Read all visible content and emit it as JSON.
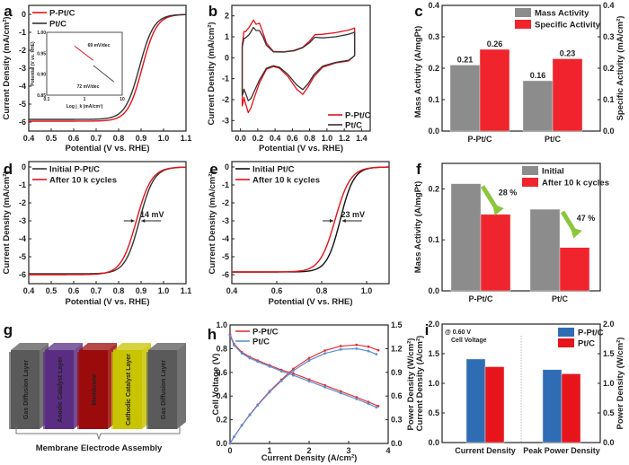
{
  "figure": {
    "panel_labels": [
      "a",
      "b",
      "c",
      "d",
      "e",
      "f",
      "g",
      "h",
      "i"
    ]
  },
  "chart_data": [
    {
      "panel": "a",
      "type": "line",
      "xlabel": "Potential  (V vs. RHE)",
      "ylabel": "Current Density (mA/cm²)",
      "xlim": [
        0.4,
        1.1
      ],
      "ylim": [
        -6.5,
        0.5
      ],
      "xticks": [
        "0.4",
        "0.5",
        "0.6",
        "0.7",
        "0.8",
        "0.9",
        "1.0",
        "1.1"
      ],
      "yticks": [
        "0",
        "-1",
        "-2",
        "-3",
        "-4",
        "-5",
        "-6"
      ],
      "legend": "top-left",
      "series": [
        {
          "name": "P-Pt/C",
          "color": "#e0141c",
          "limiting": -5.95,
          "half_wave": 0.905,
          "width": 0.032
        },
        {
          "name": "Pt/C",
          "color": "#333333",
          "limiting": -5.85,
          "half_wave": 0.893,
          "width": 0.032
        }
      ],
      "inset": {
        "xlabel": "Log j_k (mA/cm²)",
        "ylabel": "Potential (V vs. RHE)",
        "xticks": [
          "0.1",
          "1",
          "10"
        ],
        "yticks": [
          "0.85",
          "0.90",
          "0.95",
          "1.00"
        ],
        "annotations": [
          {
            "text": "69 mV/dec",
            "color": "#e0141c"
          },
          {
            "text": "72 mV/dec",
            "color": "#555555"
          }
        ],
        "series": [
          {
            "name": "P-Pt/C",
            "x": [
              0.55,
              1.7
            ],
            "y": [
              0.967,
              0.933
            ],
            "color": "#e0141c"
          },
          {
            "name": "Pt/C",
            "x": [
              1.7,
              6.0
            ],
            "y": [
              0.921,
              0.882
            ],
            "color": "#555555"
          }
        ]
      }
    },
    {
      "panel": "b",
      "type": "line",
      "xlabel": "Potential  (V vs. RHE)",
      "ylabel": "Current Density (mA/cm²)",
      "xlim": [
        -0.1,
        1.5
      ],
      "ylim": [
        -3.5,
        2.5
      ],
      "xticks": [
        "0.0",
        "0.2",
        "0.4",
        "0.6",
        "0.8",
        "1.0",
        "1.2",
        "1.4"
      ],
      "yticks": [
        "2",
        "1",
        "0",
        "-1",
        "-2",
        "-3"
      ],
      "legend": "bottom-right",
      "series": [
        {
          "name": "P-Pt/C",
          "color": "#e0141c",
          "x": [
            0.02,
            0.04,
            0.06,
            0.1,
            0.15,
            0.18,
            0.22,
            0.26,
            0.3,
            0.38,
            0.5,
            0.62,
            0.72,
            0.8,
            0.86,
            0.95,
            1.1,
            1.25,
            1.32,
            1.32,
            1.25,
            1.1,
            0.95,
            0.85,
            0.78,
            0.72,
            0.65,
            0.55,
            0.45,
            0.38,
            0.3,
            0.22,
            0.16,
            0.12,
            0.09,
            0.06,
            0.04,
            0.03,
            0.02
          ],
          "y": [
            0.6,
            1.25,
            1.25,
            1.45,
            1.8,
            1.6,
            1.65,
            1.2,
            0.7,
            0.3,
            0.28,
            0.35,
            0.5,
            0.8,
            1.1,
            1.12,
            1.2,
            1.32,
            1.42,
            0.1,
            -0.15,
            -0.25,
            -0.45,
            -0.9,
            -1.4,
            -1.75,
            -1.5,
            -0.9,
            -0.5,
            -0.42,
            -0.55,
            -1.2,
            -1.9,
            -2.4,
            -2.62,
            -2.2,
            -1.9,
            -2.15,
            -2.3
          ]
        },
        {
          "name": "Pt/C",
          "color": "#333333",
          "x": [
            0.02,
            0.04,
            0.06,
            0.1,
            0.15,
            0.18,
            0.22,
            0.26,
            0.3,
            0.38,
            0.5,
            0.62,
            0.72,
            0.8,
            0.86,
            0.95,
            1.1,
            1.25,
            1.32,
            1.32,
            1.25,
            1.1,
            0.95,
            0.85,
            0.78,
            0.72,
            0.65,
            0.55,
            0.45,
            0.38,
            0.3,
            0.22,
            0.16,
            0.12,
            0.09,
            0.06,
            0.04,
            0.03,
            0.02
          ],
          "y": [
            0.5,
            0.92,
            0.95,
            1.1,
            1.45,
            1.3,
            1.3,
            1.0,
            0.6,
            0.28,
            0.27,
            0.33,
            0.48,
            0.72,
            0.98,
            0.95,
            1.0,
            1.12,
            1.22,
            0.1,
            -0.12,
            -0.22,
            -0.4,
            -0.8,
            -1.25,
            -1.52,
            -1.3,
            -0.8,
            -0.45,
            -0.38,
            -0.5,
            -1.05,
            -1.6,
            -1.95,
            -2.05,
            -1.7,
            -1.5,
            -1.7,
            -1.8
          ]
        }
      ]
    },
    {
      "panel": "c",
      "type": "bar",
      "categories": [
        "P-Pt/C",
        "Pt/C"
      ],
      "ylabel": "Mass Activity (A/mgPt)",
      "ylabel_right": "Specific Activity (mA/cm²)",
      "ylim": [
        0,
        0.4
      ],
      "yticks": [
        "0.0",
        "0.1",
        "0.2",
        "0.3",
        "0.4"
      ],
      "legend": "top-right",
      "series": [
        {
          "name": "Mass Activity",
          "values": [
            0.21,
            0.16
          ],
          "labels": [
            "0.21",
            "0.16"
          ],
          "color": "#8c8c8c"
        },
        {
          "name": "Specific Activity",
          "values": [
            0.26,
            0.23
          ],
          "labels": [
            "0.26",
            "0.23"
          ],
          "color": "#f0242c"
        }
      ]
    },
    {
      "panel": "d",
      "type": "line",
      "xlabel": "Potential  (V vs. RHE)",
      "ylabel": "Current Density (mA/cm²)",
      "xlim": [
        0.4,
        1.1
      ],
      "ylim": [
        -6.5,
        0.3
      ],
      "xticks": [
        "0.4",
        "0.5",
        "0.6",
        "0.7",
        "0.8",
        "0.9",
        "1.0",
        "1.1"
      ],
      "yticks": [
        "0",
        "-1",
        "-2",
        "-3",
        "-4",
        "-5",
        "-6"
      ],
      "legend": "top-left",
      "annotation": "14 mV",
      "series": [
        {
          "name": "Initial P-Pt/C",
          "color": "#333333",
          "limiting": -5.95,
          "half_wave": 0.893,
          "width": 0.032
        },
        {
          "name": "After 10 k cycles",
          "color": "#e0141c",
          "limiting": -6.0,
          "half_wave": 0.879,
          "width": 0.034
        }
      ]
    },
    {
      "panel": "e",
      "type": "line",
      "xlabel": "Potential (V vs. RHE)",
      "ylabel": "Current Density (mA/cm²)",
      "xlim": [
        0.4,
        1.1
      ],
      "ylim": [
        -6.5,
        0.3
      ],
      "xticks": [
        "0.4",
        "0.6",
        "0.8",
        "1.0"
      ],
      "yticks": [
        "0",
        "-1",
        "-2",
        "-3",
        "-4",
        "-5",
        "-6"
      ],
      "legend": "top-left",
      "annotation": "23 mV",
      "series": [
        {
          "name": "Initial Pt/C",
          "color": "#111111",
          "limiting": -5.85,
          "half_wave": 0.883,
          "width": 0.03
        },
        {
          "name": "After 10 k cycles",
          "color": "#e0141c",
          "limiting": -5.85,
          "half_wave": 0.86,
          "width": 0.034
        }
      ]
    },
    {
      "panel": "f",
      "type": "bar",
      "categories": [
        "P-Pt/C",
        "Pt/C"
      ],
      "ylabel": "Mass Activity (A/mgPt)",
      "ylim": [
        0,
        0.25
      ],
      "yticks": [
        "0.0",
        "0.1",
        "0.2"
      ],
      "legend": "top-right",
      "annotations": [
        "28 %",
        "47 %"
      ],
      "annotation_color": "#8cc63f",
      "series": [
        {
          "name": "Initial",
          "values": [
            0.21,
            0.16
          ],
          "color": "#8c8c8c"
        },
        {
          "name": "After 10 k cycles",
          "values": [
            0.15,
            0.085
          ],
          "color": "#f0242c"
        }
      ]
    },
    {
      "panel": "h",
      "type": "line",
      "xlabel": "Current Density (A/cm²)",
      "ylabel": "Cell Voltage (V)",
      "ylabel_right": "Power Density (W/cm²)",
      "xlim": [
        0,
        4
      ],
      "ylim": [
        0,
        1.0
      ],
      "ylim_right": [
        0,
        1.5
      ],
      "xticks": [
        "0",
        "1",
        "2",
        "3",
        "4"
      ],
      "yticks": [
        "0.0",
        "0.2",
        "0.4",
        "0.6",
        "0.8",
        "1.0"
      ],
      "yticks_right": [
        "0.0",
        "0.3",
        "0.6",
        "0.9",
        "1.2",
        "1.5"
      ],
      "legend": "top-left",
      "series": [
        {
          "name": "P-Pt/C",
          "color": "#e0343c",
          "x": [
            0,
            0.1,
            0.3,
            0.5,
            0.7,
            1.0,
            1.3,
            1.6,
            2.0,
            2.4,
            2.8,
            3.2,
            3.5,
            3.75
          ],
          "voltage": [
            0.92,
            0.84,
            0.77,
            0.73,
            0.7,
            0.66,
            0.62,
            0.59,
            0.54,
            0.49,
            0.44,
            0.39,
            0.35,
            0.315
          ],
          "power": [
            0,
            0.084,
            0.231,
            0.365,
            0.49,
            0.66,
            0.806,
            0.944,
            1.08,
            1.176,
            1.232,
            1.248,
            1.225,
            1.18
          ]
        },
        {
          "name": "Pt/C",
          "color": "#5b8fd0",
          "x": [
            0,
            0.1,
            0.3,
            0.5,
            0.7,
            1.0,
            1.3,
            1.6,
            2.0,
            2.4,
            2.8,
            3.2,
            3.5,
            3.7
          ],
          "voltage": [
            0.91,
            0.83,
            0.76,
            0.72,
            0.69,
            0.65,
            0.61,
            0.575,
            0.525,
            0.475,
            0.425,
            0.375,
            0.335,
            0.305
          ],
          "power": [
            0,
            0.083,
            0.228,
            0.36,
            0.483,
            0.65,
            0.793,
            0.92,
            1.05,
            1.14,
            1.19,
            1.2,
            1.17,
            1.13
          ]
        }
      ]
    },
    {
      "panel": "i",
      "type": "bar",
      "categories": [
        "Current Density",
        "Peak Power Density"
      ],
      "ylabel": "Current Density (A/cm²)",
      "ylabel_right": "Power Density (W/cm²)",
      "ylim": [
        0,
        2.0
      ],
      "yticks": [
        "0.0",
        "0.5",
        "1.0",
        "1.5",
        "2.0"
      ],
      "legend": "top-right",
      "annotation": [
        "@ 0.60 V",
        "Cell Voltage"
      ],
      "series": [
        {
          "name": "P-Pt/C",
          "values": [
            1.41,
            1.23
          ],
          "color": "#2e6db4"
        },
        {
          "name": "Pt/C",
          "values": [
            1.28,
            1.16
          ],
          "color": "#e8141c"
        }
      ]
    }
  ],
  "diagram_g": {
    "layers": [
      "Gas Diffusion Layer",
      "Anodic Catalyst Layer",
      "Membrane",
      "Cathodic Catalyst Layer",
      "Gas Diffusion Layer"
    ],
    "colors": [
      "#5a5a5a",
      "#5a2d82",
      "#9b0b0b",
      "#c9c400",
      "#5a5a5a"
    ],
    "caption": "Membrane Electrode Assembly"
  }
}
